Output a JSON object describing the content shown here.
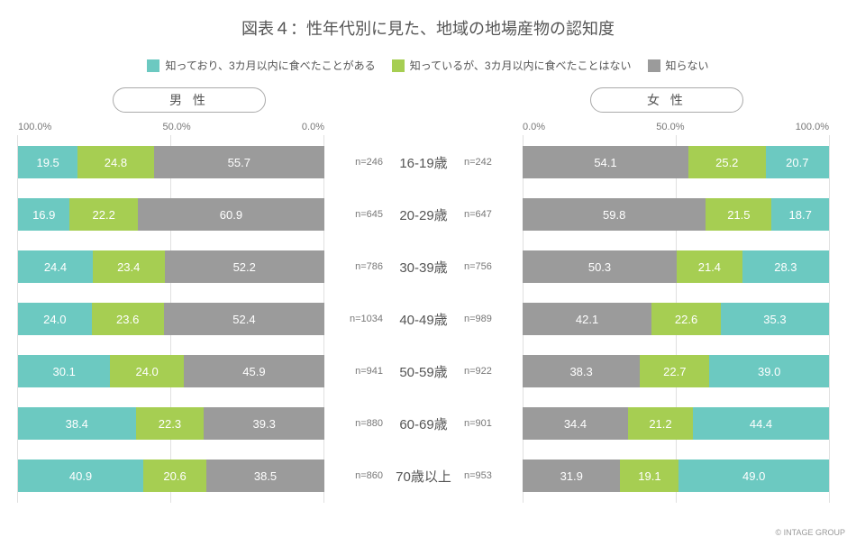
{
  "title": "図表４：性年代別に見た、地域の地場産物の認知度",
  "legend": [
    {
      "label": "知っており、3カ月以内に食べたことがある",
      "color": "#6cc9c1"
    },
    {
      "label": "知っているが、3カ月以内に食べたことはない",
      "color": "#a6ce52"
    },
    {
      "label": "知らない",
      "color": "#9b9b9b"
    }
  ],
  "headers": {
    "male": "男 性",
    "female": "女 性"
  },
  "axis": {
    "p100": "100.0%",
    "p50": "50.0%",
    "p0": "0.0%"
  },
  "colors": {
    "know_eat": "#6cc9c1",
    "know_noeat": "#a6ce52",
    "dont_know": "#9b9b9b",
    "grid": "#e0e0e0",
    "text": "#555555"
  },
  "rows": [
    {
      "age": "16-19歳",
      "male": {
        "n": "n=246",
        "know_eat": 19.5,
        "know_noeat": 24.8,
        "dont_know": 55.7
      },
      "female": {
        "n": "n=242",
        "know_eat": 20.7,
        "know_noeat": 25.2,
        "dont_know": 54.1
      }
    },
    {
      "age": "20-29歳",
      "male": {
        "n": "n=645",
        "know_eat": 16.9,
        "know_noeat": 22.2,
        "dont_know": 60.9
      },
      "female": {
        "n": "n=647",
        "know_eat": 18.7,
        "know_noeat": 21.5,
        "dont_know": 59.8
      }
    },
    {
      "age": "30-39歳",
      "male": {
        "n": "n=786",
        "know_eat": 24.4,
        "know_noeat": 23.4,
        "dont_know": 52.2
      },
      "female": {
        "n": "n=756",
        "know_eat": 28.3,
        "know_noeat": 21.4,
        "dont_know": 50.3
      }
    },
    {
      "age": "40-49歳",
      "male": {
        "n": "n=1034",
        "know_eat": 24.0,
        "know_noeat": 23.6,
        "dont_know": 52.4
      },
      "female": {
        "n": "n=989",
        "know_eat": 35.3,
        "know_noeat": 22.6,
        "dont_know": 42.1
      }
    },
    {
      "age": "50-59歳",
      "male": {
        "n": "n=941",
        "know_eat": 30.1,
        "know_noeat": 24.0,
        "dont_know": 45.9
      },
      "female": {
        "n": "n=922",
        "know_eat": 39.0,
        "know_noeat": 22.7,
        "dont_know": 38.3
      }
    },
    {
      "age": "60-69歳",
      "male": {
        "n": "n=880",
        "know_eat": 38.4,
        "know_noeat": 22.3,
        "dont_know": 39.3
      },
      "female": {
        "n": "n=901",
        "know_eat": 44.4,
        "know_noeat": 21.2,
        "dont_know": 34.4
      }
    },
    {
      "age": "70歳以上",
      "male": {
        "n": "n=860",
        "know_eat": 40.9,
        "know_noeat": 20.6,
        "dont_know": 38.5
      },
      "female": {
        "n": "n=953",
        "know_eat": 49.0,
        "know_noeat": 19.1,
        "dont_know": 31.9
      }
    }
  ],
  "credit": "© INTAGE GROUP"
}
